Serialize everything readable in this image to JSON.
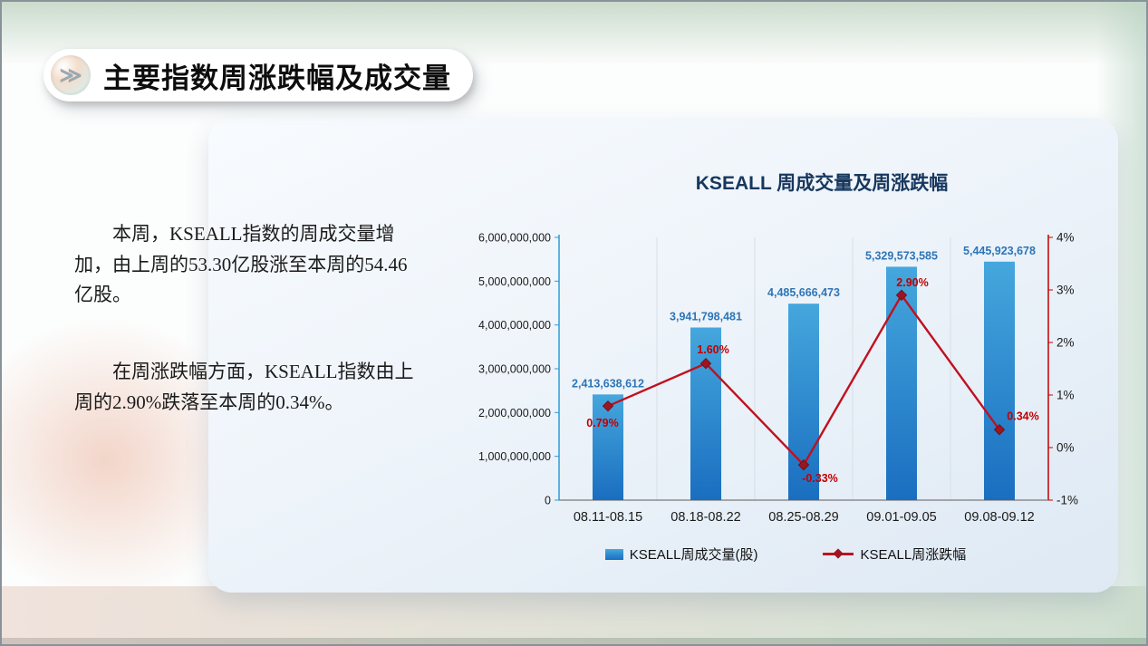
{
  "slide": {
    "header": {
      "title": "主要指数周涨跌幅及成交量",
      "icon_glyph": "≫"
    },
    "paragraphs": [
      {
        "text": "本周，KSEALL指数的周成交量增加，由上周的53.30亿股涨至本周的54.46亿股。"
      },
      {
        "text": "在周涨跌幅方面，KSEALL指数由上周的2.90%跌落至本周的0.34%。"
      }
    ]
  },
  "chart_data": {
    "type": "bar+line",
    "title": "KSEALL 周成交量及周涨跌幅",
    "categories": [
      "08.11-08.15",
      "08.18-08.22",
      "08.25-08.29",
      "09.01-09.05",
      "09.08-09.12"
    ],
    "series": [
      {
        "name": "KSEALL周成交量(股)",
        "type": "bar",
        "axis": "left",
        "values": [
          2413638612,
          3941798481,
          4485666473,
          5329573585,
          5445923678
        ],
        "labels": [
          "2,413,638,612",
          "3,941,798,481",
          "4,485,666,473",
          "5,329,573,585",
          "5,445,923,678"
        ],
        "color_top": "#45a7dd",
        "color_bottom": "#1a6ec0",
        "label_color": "#2e75b6"
      },
      {
        "name": "KSEALL周涨跌幅",
        "type": "line",
        "axis": "right",
        "values": [
          0.79,
          1.6,
          -0.33,
          2.9,
          0.34
        ],
        "labels": [
          "0.79%",
          "1.60%",
          "-0.33%",
          "2.90%",
          "0.34%"
        ],
        "color": "#c0111f",
        "marker_color": "#9d1522",
        "label_color": "#c00000"
      }
    ],
    "left_axis": {
      "min": 0,
      "max": 6000000000,
      "step": 1000000000,
      "labels": [
        "0",
        "1,000,000,000",
        "2,000,000,000",
        "3,000,000,000",
        "4,000,000,000",
        "5,000,000,000",
        "6,000,000,000"
      ],
      "line_color": "#2e9bd6"
    },
    "right_axis": {
      "min": -1,
      "max": 4,
      "step": 1,
      "labels": [
        "-1%",
        "0%",
        "1%",
        "2%",
        "3%",
        "4%"
      ],
      "line_color": "#c00000"
    },
    "grid": "vertical category separators only",
    "legend_position": "bottom"
  }
}
